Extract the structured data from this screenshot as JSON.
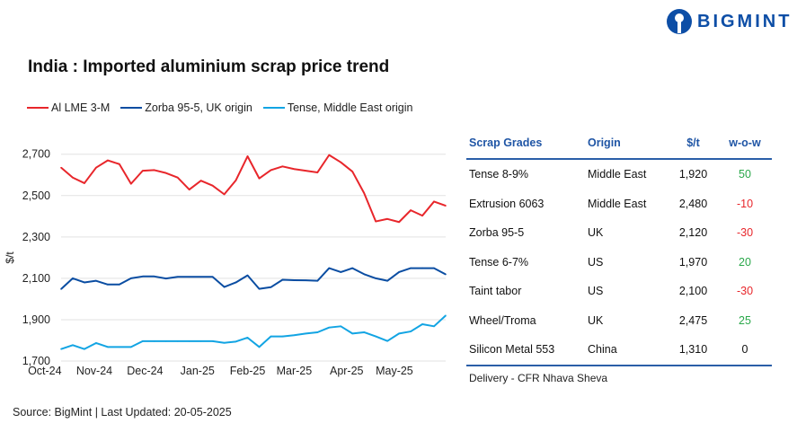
{
  "brand": {
    "name": "BIGMINT",
    "color": "#0d4ea6"
  },
  "chart_data": {
    "type": "line",
    "title": "India : Imported aluminium scrap price trend",
    "ylabel": "$/t",
    "xlabel": "",
    "ylim": [
      1700,
      2700
    ],
    "yticks": [
      1700,
      1900,
      2100,
      2300,
      2500,
      2700
    ],
    "ytick_labels": [
      "1,700",
      "1,900",
      "2,100",
      "2,300",
      "2,500",
      "2,700"
    ],
    "x_tick_labels": [
      "Oct-24",
      "Nov-24",
      "Dec-24",
      "Jan-25",
      "Feb-25",
      "Mar-25",
      "Apr-25",
      "May-25"
    ],
    "grid": true,
    "legend_position": "top-left",
    "series": [
      {
        "name": "Al LME 3-M",
        "color": "#e8262b",
        "values": [
          2635,
          2587,
          2560,
          2635,
          2670,
          2652,
          2557,
          2620,
          2623,
          2609,
          2587,
          2529,
          2572,
          2548,
          2506,
          2574,
          2690,
          2583,
          2623,
          2641,
          2628,
          2620,
          2612,
          2696,
          2661,
          2616,
          2512,
          2375,
          2387,
          2372,
          2429,
          2403,
          2471,
          2451
        ]
      },
      {
        "name": "Zorba 95-5, UK origin",
        "color": "#0a4da2",
        "values": [
          2048,
          2100,
          2080,
          2088,
          2070,
          2070,
          2100,
          2109,
          2109,
          2099,
          2107,
          2107,
          2107,
          2107,
          2058,
          2080,
          2114,
          2049,
          2057,
          2093,
          2091,
          2090,
          2088,
          2149,
          2130,
          2149,
          2120,
          2100,
          2088,
          2130,
          2149,
          2149,
          2149,
          2119
        ]
      },
      {
        "name": "Tense, Middle East origin",
        "color": "#12a4e3",
        "values": [
          1758,
          1777,
          1758,
          1787,
          1768,
          1768,
          1768,
          1796,
          1796,
          1796,
          1796,
          1796,
          1796,
          1796,
          1788,
          1794,
          1813,
          1768,
          1819,
          1819,
          1825,
          1833,
          1839,
          1862,
          1868,
          1833,
          1839,
          1819,
          1797,
          1833,
          1843,
          1878,
          1868,
          1920
        ]
      }
    ]
  },
  "table": {
    "headers": [
      "Scrap Grades",
      "Origin",
      "$/t",
      "w-o-w"
    ],
    "rows": [
      {
        "grade": "Tense 8-9%",
        "origin": "Middle East",
        "price": "1,920",
        "wow": "50",
        "trend": "up"
      },
      {
        "grade": "Extrusion 6063",
        "origin": "Middle East",
        "price": "2,480",
        "wow": "-10",
        "trend": "down"
      },
      {
        "grade": "Zorba 95-5",
        "origin": "UK",
        "price": "2,120",
        "wow": "-30",
        "trend": "down"
      },
      {
        "grade": "Tense 6-7%",
        "origin": "US",
        "price": "1,970",
        "wow": "20",
        "trend": "up"
      },
      {
        "grade": "Taint tabor",
        "origin": "US",
        "price": "2,100",
        "wow": "-30",
        "trend": "down"
      },
      {
        "grade": "Wheel/Troma",
        "origin": "UK",
        "price": "2,475",
        "wow": "25",
        "trend": "up"
      },
      {
        "grade": "Silicon Metal 553",
        "origin": "China",
        "price": "1,310",
        "wow": "0",
        "trend": "flat"
      }
    ],
    "footnote": "Delivery - CFR Nhava Sheva",
    "colors": {
      "up": "#2aa84a",
      "down": "#e8262b",
      "flat": "#111111",
      "header": "#1f55a5"
    }
  },
  "source": "Source: BigMint | Last Updated: 20-05-2025"
}
